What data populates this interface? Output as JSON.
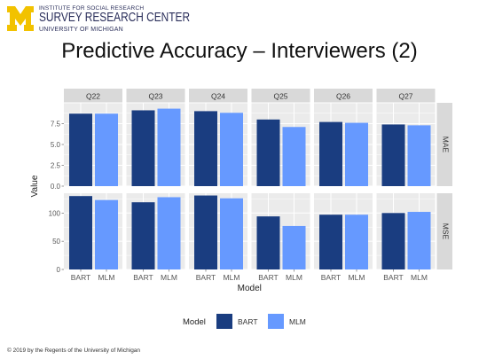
{
  "header": {
    "institute_line": "INSTITUTE FOR SOCIAL RESEARCH",
    "center_name": "SURVEY RESEARCH CENTER",
    "university_line": "UNIVERSITY OF MICHIGAN",
    "logo_letter": "M"
  },
  "slide": {
    "title": "Predictive Accuracy – Interviewers (2)",
    "footer": "© 2019 by the Regents of the University of Michigan"
  },
  "colors": {
    "bart": "#1a3d80",
    "mlm": "#6699ff",
    "panel_bg": "#ebebeb",
    "strip_bg": "#d9d9d9",
    "logo_maize": "#f2c200"
  },
  "chart_data": {
    "type": "bar",
    "facet_columns": [
      "Q22",
      "Q23",
      "Q24",
      "Q25",
      "Q26",
      "Q27"
    ],
    "facet_rows": [
      "MAE",
      "MSE"
    ],
    "categories": [
      "BART",
      "MLM"
    ],
    "xlabel": "Model",
    "ylabel": "Value",
    "legend": {
      "title": "Model",
      "entries": [
        "BART",
        "MLM"
      ],
      "position": "bottom"
    },
    "grid": true,
    "rows": [
      {
        "name": "MAE",
        "ylim": [
          0,
          10
        ],
        "yticks": [
          "0.0",
          "2.5",
          "5.0",
          "7.5"
        ],
        "ytick_values": [
          0,
          2.5,
          5,
          7.5
        ],
        "series": [
          {
            "name": "BART",
            "values": [
              8.7,
              9.1,
              9.0,
              8.0,
              7.7,
              7.4
            ]
          },
          {
            "name": "MLM",
            "values": [
              8.7,
              9.3,
              8.8,
              7.1,
              7.6,
              7.3
            ]
          }
        ]
      },
      {
        "name": "MSE",
        "ylim": [
          0,
          135
        ],
        "yticks": [
          "0",
          "50",
          "100"
        ],
        "ytick_values": [
          0,
          50,
          100
        ],
        "series": [
          {
            "name": "BART",
            "values": [
              130,
              119,
              131,
              94,
              97,
              100
            ]
          },
          {
            "name": "MLM",
            "values": [
              123,
              128,
              126,
              77,
              97,
              102
            ]
          }
        ]
      }
    ]
  }
}
